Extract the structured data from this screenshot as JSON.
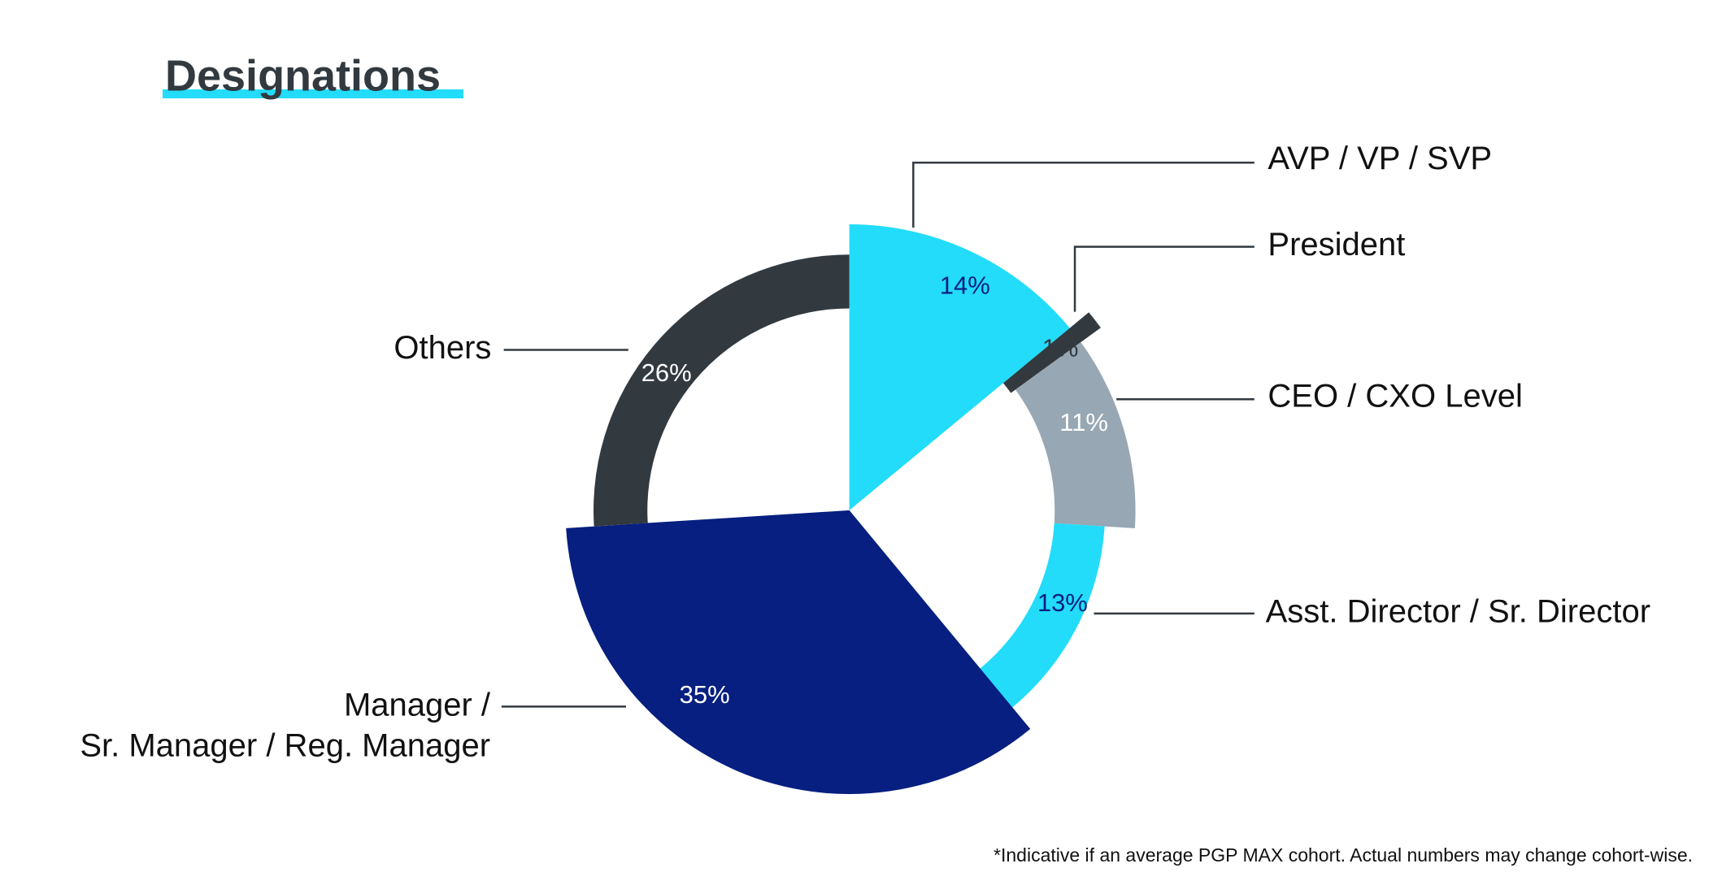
{
  "chart_data": {
    "type": "pie",
    "title": "Designations",
    "categories": [
      "AVP / VP / SVP",
      "President",
      "CEO / CXO Level",
      "Asst. Director / Sr. Director",
      "Manager /\nSr. Manager / Reg. Manager",
      "Others"
    ],
    "values": [
      14,
      1,
      11,
      13,
      35,
      26
    ],
    "value_labels": [
      "14%",
      "1%",
      "11%",
      "13%",
      "35%",
      "26%"
    ],
    "colors": [
      "#22dcfa",
      "#323a40",
      "#97a7b3",
      "#22dcfa",
      "#061f80",
      "#323a40"
    ],
    "footnote": "*Indicative if an average PGP MAX cohort. Actual numbers may change cohort-wise."
  }
}
